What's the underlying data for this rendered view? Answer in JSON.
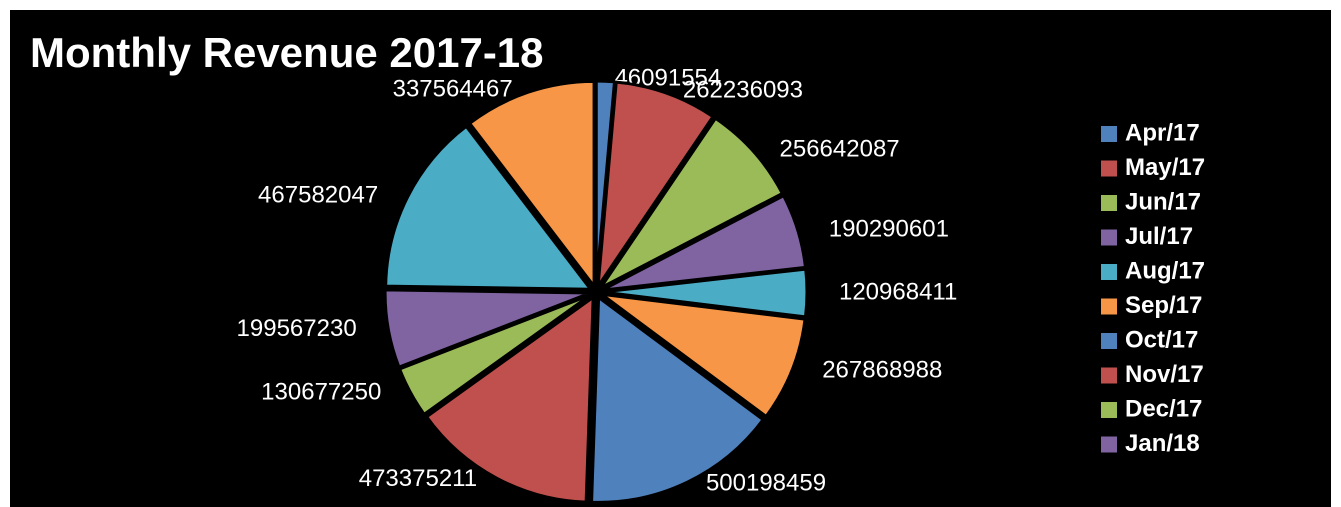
{
  "chart_data": {
    "type": "pie",
    "title": "Monthly Revenue 2017-18",
    "categories": [
      "Apr/17",
      "May/17",
      "Jun/17",
      "Jul/17",
      "Aug/17",
      "Sep/17",
      "Oct/17",
      "Nov/17",
      "Dec/17",
      "Jan/18",
      null,
      null
    ],
    "values": [
      46091554,
      262236093,
      256642087,
      190290601,
      120968411,
      267868988,
      500198459,
      473375211,
      130677250,
      199567230,
      467582047,
      337564467
    ],
    "colors": [
      "#4f81bd",
      "#c0504d",
      "#9bbb59",
      "#8064a2",
      "#4bacc6",
      "#f79646",
      "#4f81bd",
      "#c0504d",
      "#9bbb59",
      "#8064a2",
      "#4bacc6",
      "#f79646"
    ],
    "legend": "right"
  }
}
